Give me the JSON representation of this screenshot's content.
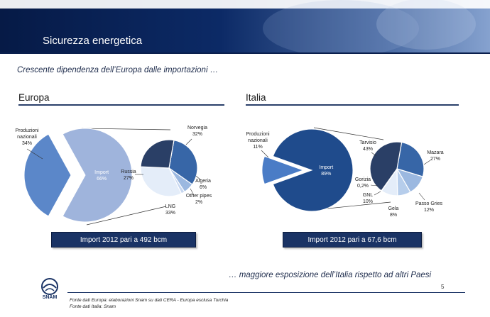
{
  "header": {
    "title": "Sicurezza energetica"
  },
  "subtitle": "Crescente dipendenza dell’Europa dalle importazioni …",
  "sections": {
    "left_title": "Europa",
    "right_title": "Italia"
  },
  "callouts": {
    "europa": "Import 2012 pari a 492 bcm",
    "italia": "Import 2012 pari a 67,6 bcm"
  },
  "conclusion": "… maggiore esposizione dell’Italia rispetto ad altri Paesi",
  "footer": {
    "page_number": "5",
    "source_lines": [
      "Fonte dati Europa: elaborazioni Snam su dati CERA - Europa esclusa Turchia",
      "Fonte dati Italia: Snam"
    ],
    "logo_text": "SNAM"
  },
  "colors": {
    "banner_dark": "#0b2354",
    "banner_light": "#7f98c4",
    "callout": "#1a3365",
    "europa_main_import": "#9fb4dc",
    "europa_main_domestic": "#5b87c9",
    "italia_main_import": "#1f4b8c",
    "italia_main_domestic": "#4a7cc6"
  },
  "chart_data": [
    {
      "type": "pie",
      "name": "europa_main",
      "title": "Europa",
      "labels": [
        "Produzioni nazionali",
        "Import"
      ],
      "values": [
        34,
        66
      ],
      "value_labels": [
        "34%",
        "66%"
      ]
    },
    {
      "type": "pie",
      "name": "europa_import_breakdown",
      "labels": [
        "Norvegia",
        "Algeria",
        "Other pipes",
        "LNG",
        "Russia"
      ],
      "values": [
        32,
        6,
        2,
        33,
        27
      ],
      "value_labels": [
        "32%",
        "6%",
        "2%",
        "33%",
        "27%"
      ],
      "colors": [
        "#3766a7",
        "#9bb8e0",
        "#c6d6ef",
        "#e4edf9",
        "#2a3f66"
      ]
    },
    {
      "type": "pie",
      "name": "italia_main",
      "title": "Italia",
      "labels": [
        "Produzioni nazionali",
        "Import"
      ],
      "values": [
        11,
        89
      ],
      "value_labels": [
        "11%",
        "89%"
      ]
    },
    {
      "type": "pie",
      "name": "italia_import_breakdown",
      "labels": [
        "Mazara",
        "Passo Gries",
        "Gela",
        "GNL",
        "Gorizia",
        "Tarvisio"
      ],
      "values": [
        27,
        12,
        8,
        10,
        0.2,
        43
      ],
      "value_labels": [
        "27%",
        "12%",
        "8%",
        "10%",
        "0,2%",
        "43%"
      ],
      "colors": [
        "#3766a7",
        "#9bb8e0",
        "#b6cdeb",
        "#e4edf9",
        "#f4f7fc",
        "#2a3f66"
      ]
    }
  ]
}
